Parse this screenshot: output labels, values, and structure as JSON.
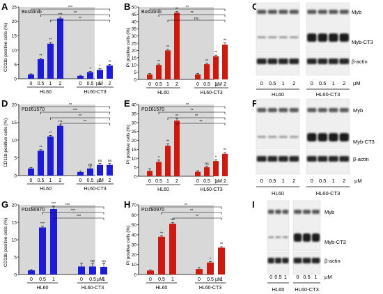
{
  "colors": {
    "blue": "#1c1cd8",
    "red": "#cc1a10",
    "panel_bg": "#d8d8d8",
    "text": "#000000"
  },
  "chart_data": [
    {
      "id": "A",
      "type": "bar",
      "title": "Bosutinib",
      "ylabel": "CD11b positive cells (%)",
      "series_color": "blue",
      "ylim": [
        0,
        25
      ],
      "yticks": [
        0,
        5,
        10,
        15,
        20,
        25
      ],
      "groups": [
        {
          "label": "HL60",
          "concentrations": [
            "0",
            "0.5",
            "1",
            "2"
          ],
          "values": [
            1.5,
            6.8,
            12.2,
            21
          ],
          "errors": [
            0.2,
            0.4,
            0.5,
            0.5
          ],
          "sig": [
            "",
            "**",
            "**",
            "***"
          ]
        },
        {
          "label": "HL60-CT3",
          "concentrations": [
            "0",
            "0.5",
            "1",
            "2"
          ],
          "values": [
            1,
            2.3,
            3.1,
            4.6
          ],
          "errors": [
            0.2,
            0.3,
            0.4,
            0.4
          ],
          "sig": [
            "",
            "*",
            "*",
            "**"
          ]
        }
      ],
      "unit": "µM",
      "brackets": [
        {
          "from": [
            0,
            0
          ],
          "to": [
            1,
            3
          ],
          "label": "***"
        },
        {
          "from": [
            0,
            1
          ],
          "to": [
            1,
            3
          ],
          "label": "**"
        },
        {
          "from": [
            0,
            2
          ],
          "to": [
            1,
            3
          ],
          "label": "**"
        }
      ]
    },
    {
      "id": "B",
      "type": "bar",
      "title": "Bosutinib",
      "ylabel": "PI positive cells (%)",
      "series_color": "red",
      "ylim": [
        0,
        50
      ],
      "yticks": [
        0,
        5,
        10,
        15,
        20,
        25,
        30,
        35,
        40,
        45,
        50
      ],
      "groups": [
        {
          "label": "HL60",
          "concentrations": [
            "0",
            "0.5",
            "1",
            "2"
          ],
          "values": [
            3.5,
            10,
            20,
            46
          ],
          "errors": [
            0.5,
            0.6,
            0.7,
            0.8
          ],
          "sig": [
            "",
            "**",
            "**",
            "**"
          ]
        },
        {
          "label": "HL60-CT3",
          "concentrations": [
            "0",
            "0.5",
            "1",
            "2"
          ],
          "values": [
            3.5,
            10.5,
            16,
            24
          ],
          "errors": [
            0.5,
            0.6,
            0.8,
            1.2
          ],
          "sig": [
            "",
            "**",
            "**",
            "**"
          ]
        }
      ],
      "unit": "µM",
      "brackets": [
        {
          "from": [
            0,
            0
          ],
          "to": [
            1,
            3
          ],
          "label": "**"
        },
        {
          "from": [
            0,
            1
          ],
          "to": [
            1,
            3
          ],
          "label": "**"
        },
        {
          "from": [
            0,
            2
          ],
          "to": [
            1,
            3
          ],
          "label": "ns"
        }
      ]
    },
    {
      "id": "D",
      "type": "bar",
      "title": "PD161570",
      "ylabel": "CD11b positive cells (%)",
      "series_color": "blue",
      "ylim": [
        0,
        20
      ],
      "yticks": [
        0,
        5,
        10,
        15,
        20
      ],
      "groups": [
        {
          "label": "HL60",
          "concentrations": [
            "0",
            "0.5",
            "1",
            "2"
          ],
          "values": [
            2,
            7,
            11,
            14
          ],
          "errors": [
            0.3,
            0.3,
            0.3,
            0.3
          ],
          "sig": [
            "",
            "**",
            "**",
            "***"
          ]
        },
        {
          "label": "HL60-CT3",
          "concentrations": [
            "0",
            "0.5",
            "1",
            "2"
          ],
          "values": [
            1,
            2,
            3,
            3
          ],
          "errors": [
            0.3,
            0.4,
            0.4,
            0.4
          ],
          "sig": [
            "",
            "ns",
            "ns",
            "ns"
          ]
        }
      ],
      "unit": "µM",
      "brackets": [
        {
          "from": [
            0,
            0
          ],
          "to": [
            1,
            3
          ],
          "label": "**"
        },
        {
          "from": [
            0,
            1
          ],
          "to": [
            1,
            3
          ],
          "label": "***"
        },
        {
          "from": [
            0,
            2
          ],
          "to": [
            1,
            3
          ],
          "label": "**"
        },
        {
          "from": [
            0,
            3
          ],
          "to": [
            1,
            3
          ],
          "label": "**"
        }
      ]
    },
    {
      "id": "E",
      "type": "bar",
      "title": "PD161570",
      "ylabel": "PI positive cells (%)",
      "series_color": "red",
      "ylim": [
        0,
        40
      ],
      "yticks": [
        0,
        5,
        10,
        15,
        20,
        25,
        30,
        35,
        40
      ],
      "groups": [
        {
          "label": "HL60",
          "concentrations": [
            "0",
            "0.5",
            "1",
            "2"
          ],
          "values": [
            3,
            8,
            17,
            31
          ],
          "errors": [
            1.2,
            1,
            1,
            1.2
          ],
          "sig": [
            "",
            "*",
            "**",
            "**"
          ]
        },
        {
          "label": "HL60-CT3",
          "concentrations": [
            "0",
            "0.5",
            "1",
            "2"
          ],
          "values": [
            2.5,
            5,
            8.5,
            12.5
          ],
          "errors": [
            0.6,
            0.6,
            0.7,
            0.7
          ],
          "sig": [
            "",
            "ns",
            "*",
            "**"
          ]
        }
      ],
      "unit": "µM",
      "brackets": [
        {
          "from": [
            0,
            0
          ],
          "to": [
            1,
            3
          ],
          "label": "**"
        },
        {
          "from": [
            0,
            1
          ],
          "to": [
            1,
            3
          ],
          "label": "**"
        },
        {
          "from": [
            0,
            2
          ],
          "to": [
            1,
            3
          ],
          "label": "**"
        },
        {
          "from": [
            0,
            3
          ],
          "to": [
            1,
            3
          ],
          "label": "**"
        }
      ]
    },
    {
      "id": "G",
      "type": "bar",
      "title": "PD180970",
      "ylabel": "CD11b positive cells (%)",
      "series_color": "blue",
      "ylim": [
        0,
        20
      ],
      "yticks": [
        0,
        5,
        10,
        15,
        20
      ],
      "groups": [
        {
          "label": "HL60",
          "concentrations": [
            "0",
            "0.5",
            "1"
          ],
          "values": [
            1.2,
            13.5,
            18.8
          ],
          "errors": [
            0.2,
            0.4,
            0.8
          ],
          "sig": [
            "",
            "***",
            "***"
          ]
        },
        {
          "label": "HL60-CT3",
          "concentrations": [
            "0",
            "0.5",
            "1"
          ],
          "values": [
            2.3,
            2.3,
            2.2
          ],
          "errors": [
            0.9,
            0.9,
            0.9
          ],
          "sig": [
            "",
            "ns",
            "ns"
          ]
        }
      ],
      "unit": "µM",
      "brackets": [
        {
          "from": [
            0,
            0
          ],
          "to": [
            1,
            2
          ],
          "label": "***"
        },
        {
          "from": [
            0,
            1
          ],
          "to": [
            1,
            2
          ],
          "label": "***"
        },
        {
          "from": [
            0,
            2
          ],
          "to": [
            1,
            2
          ],
          "label": "***"
        }
      ]
    },
    {
      "id": "H",
      "type": "bar",
      "title": "PD180970",
      "ylabel": "PI positive cells (%)",
      "series_color": "red",
      "ylim": [
        0,
        70
      ],
      "yticks": [
        0,
        10,
        20,
        30,
        40,
        50,
        60,
        70
      ],
      "groups": [
        {
          "label": "HL60",
          "concentrations": [
            "0",
            "0.5",
            "1"
          ],
          "values": [
            4,
            38,
            51
          ],
          "errors": [
            0.5,
            1,
            1.2
          ],
          "sig": [
            "",
            "**",
            "***"
          ]
        },
        {
          "label": "HL60-CT3",
          "concentrations": [
            "0",
            "0.5",
            "1"
          ],
          "values": [
            5.5,
            12,
            27
          ],
          "errors": [
            1.5,
            1,
            1
          ],
          "sig": [
            "",
            "*",
            "**"
          ]
        }
      ],
      "unit": "µM",
      "brackets": [
        {
          "from": [
            0,
            0
          ],
          "to": [
            1,
            2
          ],
          "label": "**"
        },
        {
          "from": [
            0,
            1
          ],
          "to": [
            1,
            2
          ],
          "label": "**"
        },
        {
          "from": [
            0,
            2
          ],
          "to": [
            1,
            2
          ],
          "label": "**"
        }
      ]
    }
  ],
  "blots": [
    {
      "id": "C",
      "bands": [
        "Myb",
        "Myb-CT3",
        "β-actin"
      ],
      "doses": [
        "0",
        "0.5",
        "1",
        "2",
        "0",
        "0.5",
        "1",
        "2"
      ],
      "unit": "µM",
      "cells": [
        "HL60",
        "HL60-CT3"
      ]
    },
    {
      "id": "F",
      "bands": [
        "Myb",
        "Myb-CT3",
        "β-actin"
      ],
      "doses": [
        "0",
        "0.5",
        "1",
        "2",
        "0",
        "0.5",
        "1",
        "2"
      ],
      "unit": "µM",
      "cells": [
        "HL60",
        "HL60-CT3"
      ]
    },
    {
      "id": "I",
      "bands": [
        "Myb",
        "Myb-CT3",
        "β-actin"
      ],
      "doses": [
        "0",
        "0.5",
        "1",
        "0",
        "0.5",
        "1"
      ],
      "unit": "µM",
      "cells": [
        "HL60",
        "HL60-CT3"
      ]
    }
  ]
}
